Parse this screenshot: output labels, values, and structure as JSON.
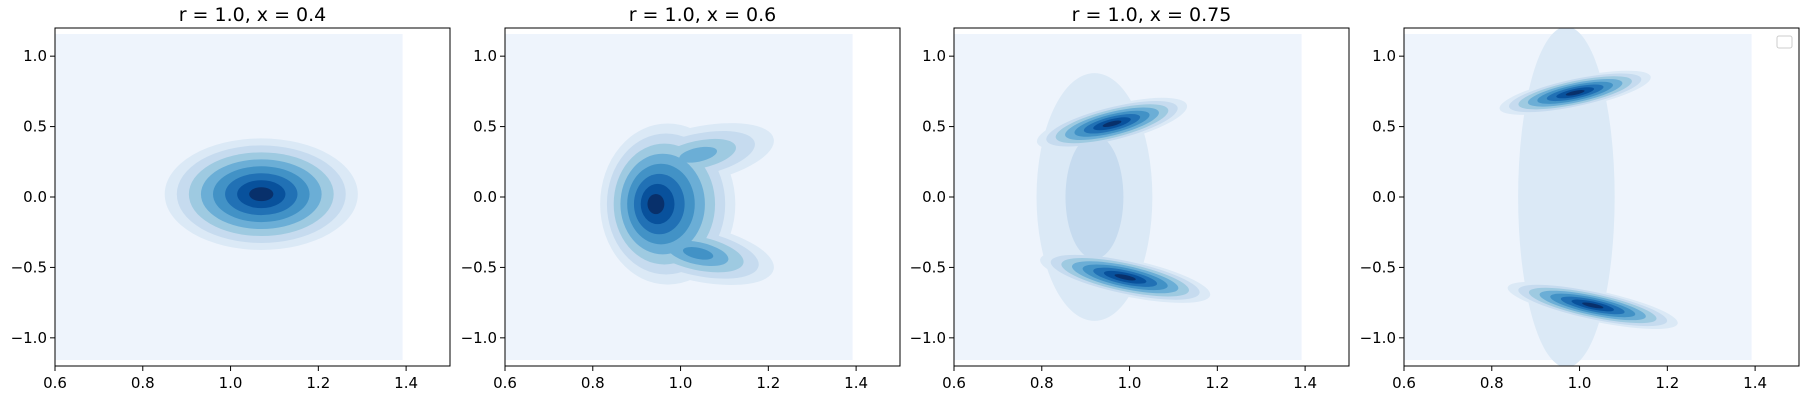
{
  "chart_data": [
    {
      "type": "kde-contour",
      "title": "r = 1.0, x = 0.4",
      "xlim": [
        0.6,
        1.5
      ],
      "ylim": [
        -1.2,
        1.2
      ],
      "xticks": [
        "0.6",
        "0.8",
        "1.0",
        "1.2",
        "1.4"
      ],
      "yticks": [
        "1.0",
        "0.5",
        "0.0",
        "−0.5",
        "−1.0"
      ],
      "blobs": [
        {
          "x": 1.07,
          "y": 0.02,
          "sx": 0.1,
          "sy": 0.18,
          "weight": 1.0,
          "bend": 0.0,
          "tilt": 0.0
        }
      ],
      "legend": false
    },
    {
      "type": "kde-contour",
      "title": "r = 1.0, x = 0.6",
      "xlim": [
        0.6,
        1.5
      ],
      "ylim": [
        -1.2,
        1.2
      ],
      "xticks": [
        "0.6",
        "0.8",
        "1.0",
        "1.2",
        "1.4"
      ],
      "yticks": [
        "1.0",
        "0.5",
        "0.0",
        "−0.5",
        "−1.0"
      ],
      "blobs": [
        {
          "x": 0.94,
          "y": -0.05,
          "sx": 0.07,
          "sy": 0.26,
          "weight": 1.0,
          "bend": 0.8,
          "tilt": 0.0
        },
        {
          "x": 1.04,
          "y": 0.3,
          "sx": 0.08,
          "sy": 0.09,
          "weight": 0.55,
          "bend": 0.0,
          "tilt": 0.3
        },
        {
          "x": 1.04,
          "y": -0.4,
          "sx": 0.08,
          "sy": 0.09,
          "weight": 0.6,
          "bend": 0.0,
          "tilt": -0.3
        }
      ],
      "legend": false
    },
    {
      "type": "kde-contour",
      "title": "r = 1.0, x = 0.75",
      "xlim": [
        0.6,
        1.5
      ],
      "ylim": [
        -1.2,
        1.2
      ],
      "xticks": [
        "0.6",
        "0.8",
        "1.0",
        "1.2",
        "1.4"
      ],
      "yticks": [
        "1.0",
        "0.5",
        "0.0",
        "−0.5",
        "−1.0"
      ],
      "blobs": [
        {
          "x": 0.96,
          "y": 0.52,
          "sx": 0.08,
          "sy": 0.06,
          "weight": 1.0,
          "bend": 0.0,
          "tilt": 0.35
        },
        {
          "x": 0.99,
          "y": -0.57,
          "sx": 0.09,
          "sy": 0.06,
          "weight": 1.0,
          "bend": 0.0,
          "tilt": -0.3
        },
        {
          "x": 0.92,
          "y": 0.0,
          "sx": 0.06,
          "sy": 0.4,
          "weight": 0.22,
          "bend": 0.0,
          "tilt": 0.0
        }
      ],
      "legend": false
    },
    {
      "type": "kde-contour",
      "title": "",
      "xlim": [
        0.6,
        1.5
      ],
      "ylim": [
        -1.2,
        1.2
      ],
      "xticks": [
        "0.6",
        "0.8",
        "1.0",
        "1.2",
        "1.4"
      ],
      "yticks": [
        "1.0",
        "0.5",
        "0.0",
        "−0.5",
        "−1.0"
      ],
      "blobs": [
        {
          "x": 0.99,
          "y": 0.74,
          "sx": 0.08,
          "sy": 0.05,
          "weight": 1.0,
          "bend": 0.0,
          "tilt": 0.3
        },
        {
          "x": 1.03,
          "y": -0.77,
          "sx": 0.09,
          "sy": 0.05,
          "weight": 1.0,
          "bend": 0.0,
          "tilt": -0.3
        },
        {
          "x": 0.97,
          "y": 0.0,
          "sx": 0.05,
          "sy": 0.55,
          "weight": 0.14,
          "bend": 0.0,
          "tilt": 0.0
        }
      ],
      "legend": true
    }
  ],
  "colors": {
    "levels": [
      "#eef4fc",
      "#dbe9f6",
      "#c6dbef",
      "#9ecae1",
      "#6baed6",
      "#4292c6",
      "#2171b5",
      "#08519c",
      "#08306b"
    ],
    "axes": "#000000",
    "background": "#ffffff"
  }
}
